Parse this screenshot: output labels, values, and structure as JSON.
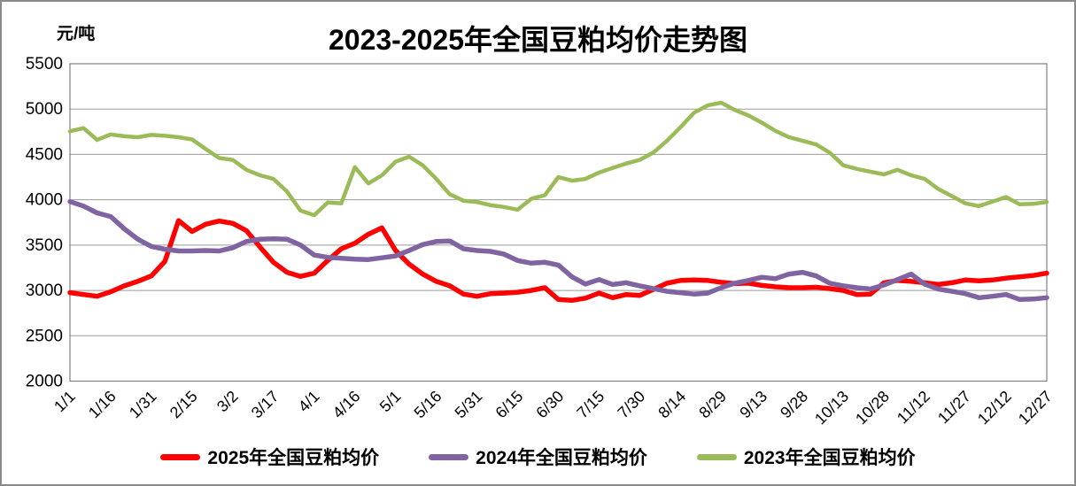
{
  "title": "2023-2025年全国豆粕均价走势图",
  "y_axis_unit": "元/吨",
  "chart_data": {
    "type": "line",
    "title": "2023-2025年全国豆粕均价走势图",
    "ylabel": "元/吨",
    "xlabel": "",
    "ylim": [
      2000,
      5500
    ],
    "ytick_step": 500,
    "grid": "horizontal",
    "legend_position": "bottom",
    "gridline_color": "#9b9b9b",
    "plot_border_color": "#808080",
    "background": "#FFFFFF",
    "label_every": 3,
    "x_labels_visible": [
      "1/1",
      "1/16",
      "1/31",
      "2/15",
      "3/2",
      "3/17",
      "4/1",
      "4/16",
      "5/1",
      "5/16",
      "5/31",
      "6/15",
      "6/30",
      "7/15",
      "7/30",
      "8/14",
      "8/29",
      "9/13",
      "9/28",
      "10/13",
      "10/28",
      "11/12",
      "11/27",
      "12/12",
      "12/27"
    ],
    "x": [
      "1/1",
      "1/6",
      "1/11",
      "1/16",
      "1/21",
      "1/26",
      "1/31",
      "2/5",
      "2/10",
      "2/15",
      "2/20",
      "2/25",
      "3/2",
      "3/7",
      "3/12",
      "3/17",
      "3/22",
      "3/27",
      "4/1",
      "4/6",
      "4/11",
      "4/16",
      "4/21",
      "4/26",
      "5/1",
      "5/6",
      "5/11",
      "5/16",
      "5/21",
      "5/26",
      "5/31",
      "6/5",
      "6/10",
      "6/15",
      "6/20",
      "6/25",
      "6/30",
      "7/5",
      "7/10",
      "7/15",
      "7/20",
      "7/25",
      "7/30",
      "8/4",
      "8/9",
      "8/14",
      "8/19",
      "8/24",
      "8/29",
      "9/3",
      "9/8",
      "9/13",
      "9/18",
      "9/23",
      "9/28",
      "10/3",
      "10/8",
      "10/13",
      "10/18",
      "10/23",
      "10/28",
      "11/2",
      "11/7",
      "11/12",
      "11/17",
      "11/22",
      "11/27",
      "12/2",
      "12/7",
      "12/12",
      "12/17",
      "12/22",
      "12/27"
    ],
    "series": [
      {
        "name": "2025年全国豆粕均价",
        "color": "#FF0000",
        "stroke_width": 5.5,
        "values": [
          2975,
          2955,
          2935,
          2985,
          3050,
          3100,
          3160,
          3320,
          3770,
          3650,
          3730,
          3765,
          3740,
          3660,
          3480,
          3310,
          3200,
          3155,
          3190,
          3330,
          3460,
          3520,
          3620,
          3690,
          3440,
          3290,
          3180,
          3100,
          3050,
          2960,
          2935,
          2965,
          2970,
          2980,
          3000,
          3030,
          2900,
          2890,
          2915,
          2970,
          2920,
          2955,
          2945,
          3010,
          3080,
          3110,
          3115,
          3110,
          3090,
          3075,
          3080,
          3055,
          3040,
          3030,
          3030,
          3035,
          3020,
          3000,
          2955,
          2960,
          3085,
          3110,
          3100,
          3085,
          3065,
          3085,
          3115,
          3105,
          3115,
          3135,
          3150,
          3165,
          3190
        ]
      },
      {
        "name": "2024年全国豆粕均价",
        "color": "#8064A2",
        "stroke_width": 5.5,
        "values": [
          3980,
          3930,
          3855,
          3815,
          3680,
          3565,
          3485,
          3455,
          3435,
          3435,
          3440,
          3435,
          3470,
          3540,
          3565,
          3570,
          3565,
          3500,
          3390,
          3365,
          3355,
          3345,
          3340,
          3360,
          3380,
          3440,
          3505,
          3540,
          3545,
          3460,
          3440,
          3430,
          3400,
          3330,
          3300,
          3310,
          3280,
          3150,
          3070,
          3120,
          3065,
          3085,
          3050,
          3020,
          2990,
          2975,
          2960,
          2970,
          3030,
          3080,
          3110,
          3145,
          3130,
          3180,
          3200,
          3160,
          3080,
          3050,
          3030,
          3015,
          3060,
          3120,
          3180,
          3070,
          3015,
          2990,
          2965,
          2920,
          2935,
          2955,
          2900,
          2905,
          2920
        ]
      },
      {
        "name": "2023年全国豆粕均价",
        "color": "#9BBB59",
        "stroke_width": 4.5,
        "values": [
          4755,
          4790,
          4660,
          4720,
          4700,
          4690,
          4715,
          4705,
          4690,
          4665,
          4560,
          4460,
          4440,
          4330,
          4270,
          4230,
          4090,
          3880,
          3830,
          3970,
          3960,
          4360,
          4180,
          4270,
          4420,
          4475,
          4380,
          4230,
          4060,
          3990,
          3975,
          3940,
          3920,
          3890,
          4010,
          4050,
          4250,
          4210,
          4230,
          4300,
          4350,
          4400,
          4440,
          4520,
          4650,
          4800,
          4960,
          5040,
          5070,
          4990,
          4930,
          4850,
          4760,
          4690,
          4650,
          4610,
          4520,
          4380,
          4340,
          4310,
          4280,
          4330,
          4270,
          4230,
          4120,
          4040,
          3960,
          3930,
          3980,
          4030,
          3950,
          3955,
          3975
        ]
      }
    ]
  }
}
